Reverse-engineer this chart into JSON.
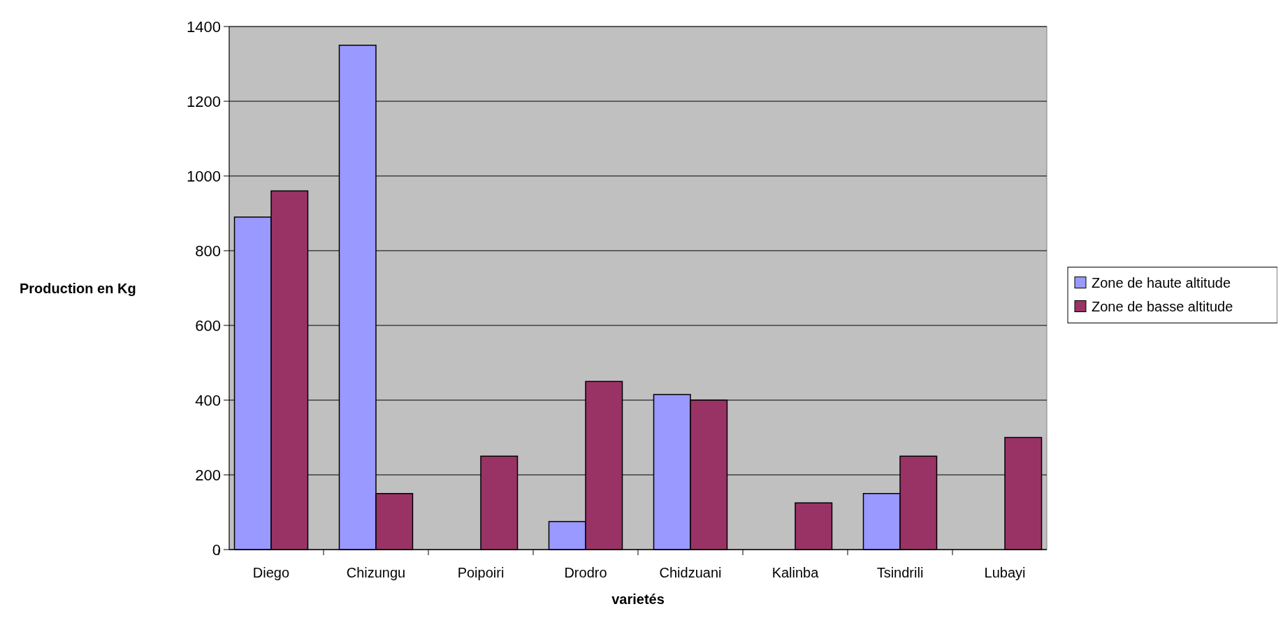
{
  "chart_data": {
    "type": "bar",
    "xlabel": "varietés",
    "ylabel": "Production en Kg",
    "categories": [
      "Diego",
      "Chizungu",
      "Poipoiri",
      "Drodro",
      "Chidzuani",
      "Kalinba",
      "Tsindrili",
      "Lubayi"
    ],
    "series": [
      {
        "name": "Zone de haute altitude",
        "color": "#9999ff",
        "values": [
          890,
          1350,
          0,
          75,
          415,
          0,
          150,
          0
        ]
      },
      {
        "name": "Zone de basse altitude",
        "color": "#993366",
        "values": [
          960,
          150,
          250,
          450,
          400,
          125,
          250,
          300
        ]
      }
    ],
    "ylim": [
      0,
      1400
    ],
    "yticks": [
      0,
      200,
      400,
      600,
      800,
      1000,
      1200,
      1400
    ],
    "grid": "y",
    "legend": "right"
  }
}
